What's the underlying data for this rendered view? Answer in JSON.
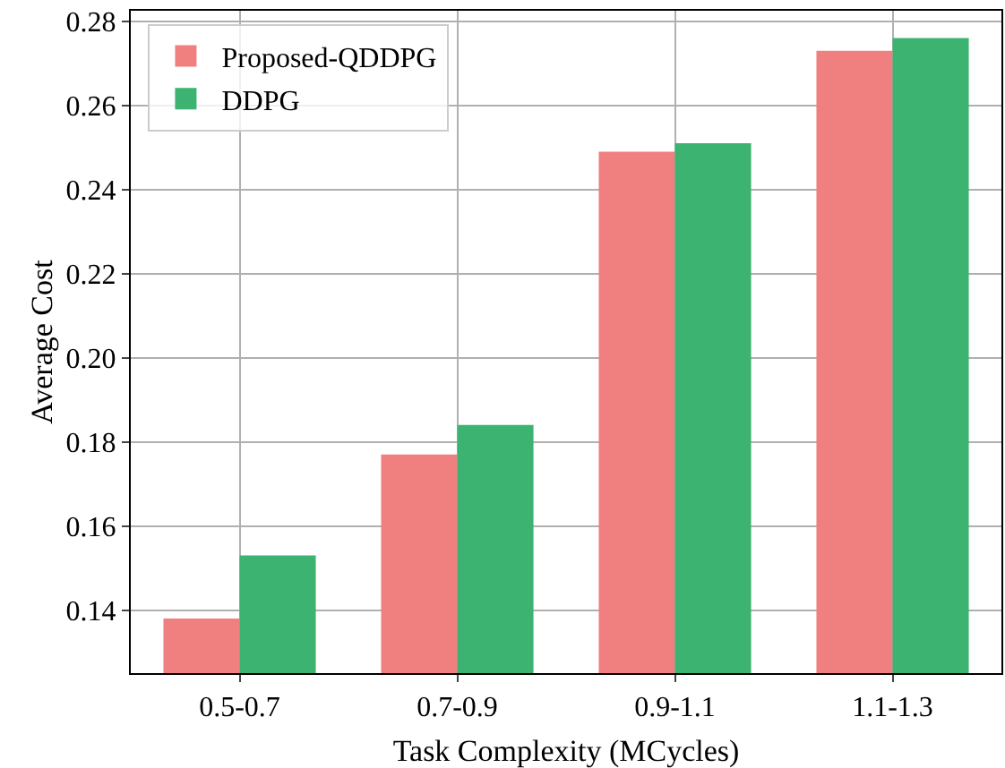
{
  "chart_data": {
    "type": "bar",
    "xlabel": "Task Complexity (MCycles)",
    "ylabel": "Average Cost",
    "categories": [
      "0.5-0.7",
      "0.7-0.9",
      "0.9-1.1",
      "1.1-1.3"
    ],
    "series": [
      {
        "name": "Proposed-QDDPG",
        "color": "#f08080",
        "values": [
          0.138,
          0.177,
          0.249,
          0.273
        ]
      },
      {
        "name": "DDPG",
        "color": "#3cb371",
        "values": [
          0.153,
          0.184,
          0.251,
          0.276
        ]
      }
    ],
    "ylim": [
      0.125,
      0.2825
    ],
    "yticks": [
      0.14,
      0.16,
      0.18,
      {
        "value": 0.2,
        "label": "0.20"
      },
      0.22,
      0.24,
      0.26,
      0.28
    ],
    "grid": true,
    "legend": "top left"
  }
}
